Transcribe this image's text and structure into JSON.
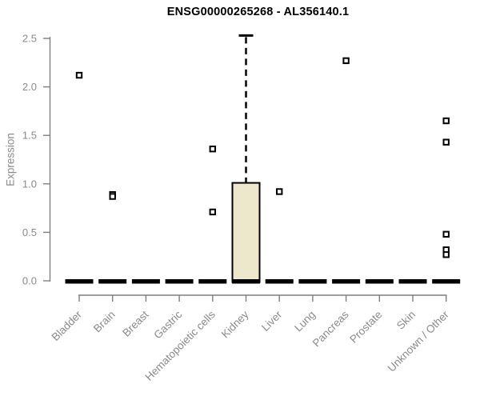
{
  "chart_data": {
    "type": "boxplot",
    "title": "ENSG00000265268 - AL356140.1",
    "ylabel": "Expression",
    "xlabel": "",
    "ylim": [
      0,
      2.5
    ],
    "yticks": [
      0,
      0.5,
      1.0,
      1.5,
      2.0,
      2.5
    ],
    "grid": false,
    "legend": "none",
    "categories": [
      "Bladder",
      "Brain",
      "Breast",
      "Gastric",
      "Hematopoietic cells",
      "Kidney",
      "Liver",
      "Lung",
      "Pancreas",
      "Prostate",
      "Skin",
      "Unknown / Other"
    ],
    "boxes": [
      {
        "category": "Bladder",
        "q1": 0,
        "median": 0,
        "q3": 0,
        "whisker_low": 0,
        "whisker_high": 0,
        "outliers": [
          2.12
        ]
      },
      {
        "category": "Brain",
        "q1": 0,
        "median": 0,
        "q3": 0,
        "whisker_low": 0,
        "whisker_high": 0,
        "outliers": [
          0.89,
          0.87
        ]
      },
      {
        "category": "Breast",
        "q1": 0,
        "median": 0,
        "q3": 0,
        "whisker_low": 0,
        "whisker_high": 0,
        "outliers": []
      },
      {
        "category": "Gastric",
        "q1": 0,
        "median": 0,
        "q3": 0,
        "whisker_low": 0,
        "whisker_high": 0,
        "outliers": []
      },
      {
        "category": "Hematopoietic cells",
        "q1": 0,
        "median": 0,
        "q3": 0,
        "whisker_low": 0,
        "whisker_high": 0,
        "outliers": [
          1.36,
          0.71
        ]
      },
      {
        "category": "Kidney",
        "q1": 0,
        "median": 0,
        "q3": 1.01,
        "whisker_low": 0,
        "whisker_high": 2.53,
        "outliers": []
      },
      {
        "category": "Liver",
        "q1": 0,
        "median": 0,
        "q3": 0,
        "whisker_low": 0,
        "whisker_high": 0,
        "outliers": [
          0.92
        ]
      },
      {
        "category": "Lung",
        "q1": 0,
        "median": 0,
        "q3": 0,
        "whisker_low": 0,
        "whisker_high": 0,
        "outliers": []
      },
      {
        "category": "Pancreas",
        "q1": 0,
        "median": 0,
        "q3": 0,
        "whisker_low": 0,
        "whisker_high": 0,
        "outliers": [
          2.27
        ]
      },
      {
        "category": "Prostate",
        "q1": 0,
        "median": 0,
        "q3": 0,
        "whisker_low": 0,
        "whisker_high": 0,
        "outliers": []
      },
      {
        "category": "Skin",
        "q1": 0,
        "median": 0,
        "q3": 0,
        "whisker_low": 0,
        "whisker_high": 0,
        "outliers": []
      },
      {
        "category": "Unknown / Other",
        "q1": 0,
        "median": 0,
        "q3": 0,
        "whisker_low": 0,
        "whisker_high": 0,
        "outliers": [
          1.65,
          1.43,
          0.48,
          0.32,
          0.27
        ]
      }
    ],
    "colors": {
      "box_fill": "#EDE7CB",
      "box_stroke": "#000000",
      "median": "#000000",
      "whisker": "#000000",
      "outlier_stroke": "#000000",
      "outlier_fill": "#ffffff",
      "axis": "#7f7f7f",
      "tick_label": "#8a8a8a",
      "title": "#000000"
    }
  }
}
